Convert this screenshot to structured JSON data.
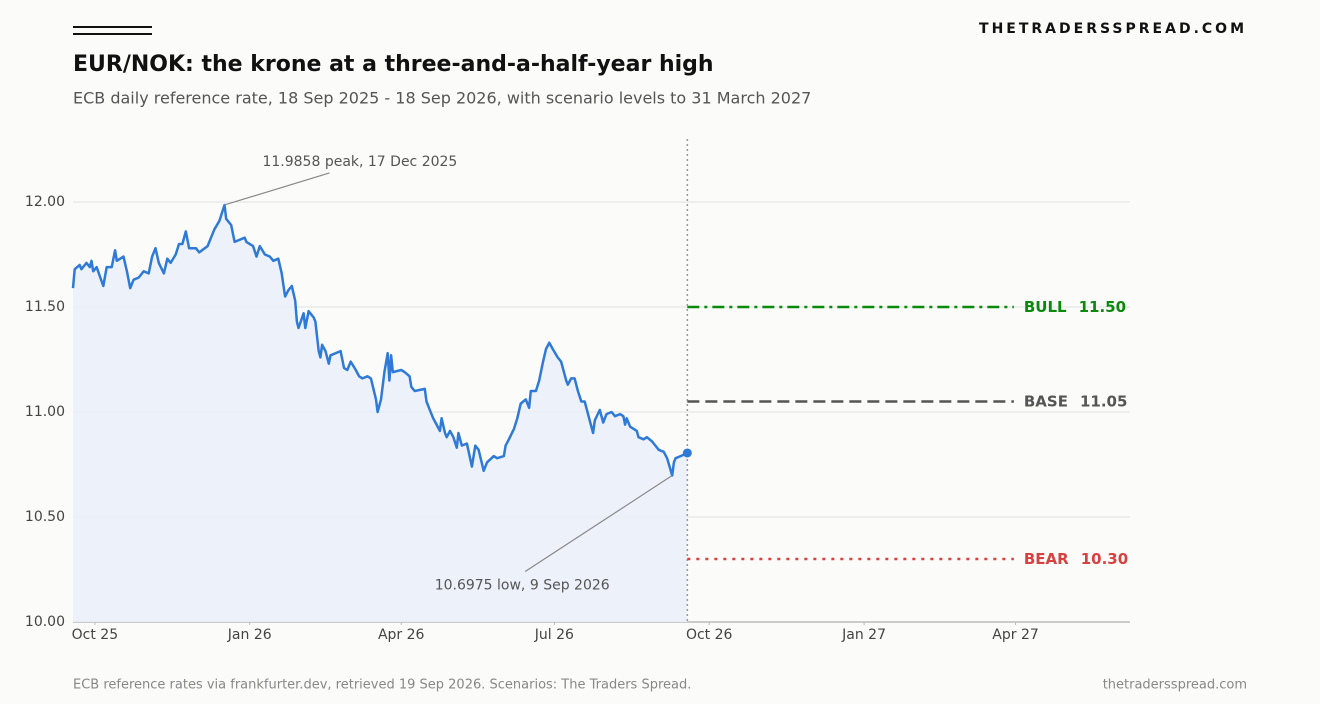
{
  "brand": "THETRADERSSPREAD.COM",
  "chart_data": {
    "type": "line",
    "title": "EUR/NOK: the krone at a three-and-a-half-year high",
    "subtitle": "ECB daily reference rate, 18 Sep 2025 - 18 Sep 2026, with scenario levels to 31 March 2027",
    "color": "#2f7ad6",
    "x": [
      "2025-09-18",
      "2025-09-19",
      "2025-09-22",
      "2025-09-23",
      "2025-09-26",
      "2025-09-28",
      "2025-09-29",
      "2025-09-30",
      "2025-10-02",
      "2025-10-06",
      "2025-10-08",
      "2025-10-11",
      "2025-10-13",
      "2025-10-14",
      "2025-10-18",
      "2025-10-20",
      "2025-10-22",
      "2025-10-24",
      "2025-10-27",
      "2025-10-30",
      "2025-11-02",
      "2025-11-04",
      "2025-11-06",
      "2025-11-08",
      "2025-11-11",
      "2025-11-13",
      "2025-11-15",
      "2025-11-18",
      "2025-11-20",
      "2025-11-22",
      "2025-11-24",
      "2025-11-26",
      "2025-11-30",
      "2025-12-02",
      "2025-12-07",
      "2025-12-09",
      "2025-12-11",
      "2025-12-14",
      "2025-12-17",
      "2025-12-18",
      "2025-12-21",
      "2025-12-23",
      "2025-12-29",
      "2025-12-30",
      "2026-01-03",
      "2026-01-05",
      "2026-01-07",
      "2026-01-10",
      "2026-01-13",
      "2026-01-15",
      "2026-01-18",
      "2026-01-20",
      "2026-01-22",
      "2026-01-24",
      "2026-01-26",
      "2026-01-28",
      "2026-01-29",
      "2026-01-30",
      "2026-02-02",
      "2026-02-03",
      "2026-02-05",
      "2026-02-08",
      "2026-02-09",
      "2026-02-11",
      "2026-02-12",
      "2026-02-13",
      "2026-02-15",
      "2026-02-17",
      "2026-02-18",
      "2026-02-24",
      "2026-02-26",
      "2026-02-28",
      "2026-03-02",
      "2026-03-05",
      "2026-03-07",
      "2026-03-09",
      "2026-03-12",
      "2026-03-14",
      "2026-03-17",
      "2026-03-18",
      "2026-03-20",
      "2026-03-22",
      "2026-03-24",
      "2026-03-25",
      "2026-03-26",
      "2026-03-27",
      "2026-04-01",
      "2026-04-03",
      "2026-04-06",
      "2026-04-07",
      "2026-04-09",
      "2026-04-15",
      "2026-04-16",
      "2026-04-18",
      "2026-04-20",
      "2026-04-22",
      "2026-04-24",
      "2026-04-25",
      "2026-04-27",
      "2026-04-28",
      "2026-04-30",
      "2026-05-02",
      "2026-05-04",
      "2026-05-05",
      "2026-05-07",
      "2026-05-10",
      "2026-05-13",
      "2026-05-15",
      "2026-05-17",
      "2026-05-20",
      "2026-05-22",
      "2026-05-26",
      "2026-05-28",
      "2026-06-01",
      "2026-06-02",
      "2026-06-04",
      "2026-06-07",
      "2026-06-09",
      "2026-06-11",
      "2026-06-14",
      "2026-06-16",
      "2026-06-17",
      "2026-06-20",
      "2026-06-22",
      "2026-06-24",
      "2026-06-26",
      "2026-06-28",
      "2026-06-30",
      "2026-07-03",
      "2026-07-05",
      "2026-07-08",
      "2026-07-09",
      "2026-07-11",
      "2026-07-13",
      "2026-07-15",
      "2026-07-17",
      "2026-07-19",
      "2026-07-22",
      "2026-07-24",
      "2026-07-25",
      "2026-07-28",
      "2026-07-30",
      "2026-08-01",
      "2026-08-04",
      "2026-08-06",
      "2026-08-09",
      "2026-08-11",
      "2026-08-12",
      "2026-08-13",
      "2026-08-15",
      "2026-08-19",
      "2026-08-20",
      "2026-08-23",
      "2026-08-25",
      "2026-08-28",
      "2026-08-30",
      "2026-09-01",
      "2026-09-04",
      "2026-09-06",
      "2026-09-09",
      "2026-09-10",
      "2026-09-11",
      "2026-09-14",
      "2026-09-18"
    ],
    "values": [
      11.59,
      11.68,
      11.7,
      11.68,
      11.71,
      11.69,
      11.72,
      11.67,
      11.69,
      11.6,
      11.69,
      11.69,
      11.77,
      11.72,
      11.74,
      11.67,
      11.59,
      11.63,
      11.64,
      11.67,
      11.66,
      11.74,
      11.78,
      11.71,
      11.66,
      11.73,
      11.71,
      11.75,
      11.8,
      11.8,
      11.86,
      11.78,
      11.78,
      11.76,
      11.79,
      11.83,
      11.87,
      11.91,
      11.9858,
      11.92,
      11.89,
      11.81,
      11.83,
      11.81,
      11.79,
      11.74,
      11.79,
      11.75,
      11.74,
      11.72,
      11.73,
      11.66,
      11.55,
      11.58,
      11.6,
      11.53,
      11.43,
      11.4,
      11.47,
      11.4,
      11.48,
      11.45,
      11.43,
      11.29,
      11.26,
      11.32,
      11.29,
      11.23,
      11.27,
      11.29,
      11.21,
      11.2,
      11.24,
      11.2,
      11.17,
      11.16,
      11.17,
      11.16,
      11.06,
      11.0,
      11.06,
      11.19,
      11.28,
      11.15,
      11.27,
      11.19,
      11.2,
      11.19,
      11.17,
      11.12,
      11.1,
      11.11,
      11.05,
      11.01,
      10.97,
      10.94,
      10.91,
      10.97,
      10.9,
      10.88,
      10.91,
      10.88,
      10.83,
      10.9,
      10.84,
      10.85,
      10.74,
      10.84,
      10.82,
      10.72,
      10.76,
      10.79,
      10.78,
      10.79,
      10.84,
      10.87,
      10.92,
      10.97,
      11.04,
      11.06,
      11.02,
      11.1,
      11.1,
      11.15,
      11.23,
      11.3,
      11.33,
      11.3,
      11.26,
      11.24,
      11.15,
      11.13,
      11.16,
      11.16,
      11.1,
      11.05,
      11.05,
      10.96,
      10.9,
      10.96,
      11.01,
      10.95,
      10.99,
      11.0,
      10.98,
      10.99,
      10.98,
      10.94,
      10.97,
      10.93,
      10.91,
      10.88,
      10.87,
      10.88,
      10.86,
      10.84,
      10.82,
      10.81,
      10.78,
      10.6975,
      10.76,
      10.78,
      10.79,
      10.805
    ],
    "xlim": [
      "2025-09-18",
      "2027-06-08"
    ],
    "xticks": [
      {
        "value": "2025-10-01",
        "label": "Oct 25"
      },
      {
        "value": "2026-01-01",
        "label": "Jan 26"
      },
      {
        "value": "2026-04-01",
        "label": "Apr 26"
      },
      {
        "value": "2026-07-01",
        "label": "Jul 26"
      },
      {
        "value": "2026-10-01",
        "label": "Oct 26"
      },
      {
        "value": "2027-01-01",
        "label": "Jan 27"
      },
      {
        "value": "2027-04-01",
        "label": "Apr 27"
      }
    ],
    "ylim": [
      10,
      12.3
    ],
    "yticks": [
      {
        "value": 10,
        "label": "10.00"
      },
      {
        "value": 10.5,
        "label": "10.50"
      },
      {
        "value": 11,
        "label": "11.00"
      },
      {
        "value": 11.5,
        "label": "11.50"
      },
      {
        "value": 12,
        "label": "12.00"
      }
    ],
    "grid": true,
    "scenarios": {
      "end": "2027-03-31",
      "lines": [
        {
          "name": "BULL",
          "value": 11.5,
          "value_label": "11.50",
          "color": "#0a8a0a",
          "dash": "dashdot"
        },
        {
          "name": "BASE",
          "value": 11.05,
          "value_label": "11.05",
          "color": "#555555",
          "dash": "dashed"
        },
        {
          "name": "BEAR",
          "value": 10.3,
          "value_label": "10.30",
          "color": "#d94040",
          "dash": "dotted"
        }
      ]
    },
    "annotations": [
      {
        "text": "11.9858 peak, 17 Dec 2025",
        "x": "2025-12-17",
        "y": 11.9858
      },
      {
        "text": "10.6975 low, 9 Sep 2026",
        "x": "2026-09-09",
        "y": 10.6975
      }
    ],
    "footer_left": "ECB reference rates via frankfurter.dev, retrieved 19 Sep 2026. Scenarios: The Traders Spread.",
    "footer_right": "thetradersspread.com"
  }
}
